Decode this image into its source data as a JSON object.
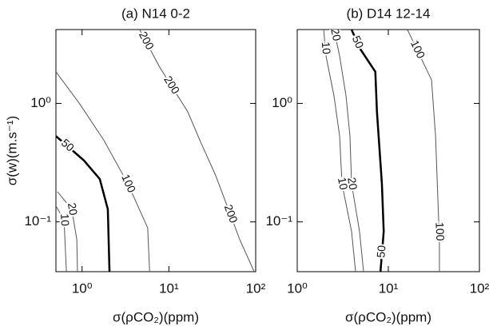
{
  "chart_data": [
    {
      "type": "contour",
      "title": "(a) N14 0-2",
      "xlabel": "σ(ρCO₂)(ppm)",
      "ylabel": "σ(w)(m.s⁻¹)",
      "xscale": "log",
      "yscale": "log",
      "xlim": [
        0.5,
        100
      ],
      "ylim": [
        0.038,
        4.2
      ],
      "xticks": [
        {
          "value": 1,
          "label": "10⁰"
        },
        {
          "value": 10,
          "label": "10¹"
        },
        {
          "value": 100,
          "label": "10²"
        }
      ],
      "yticks": [
        {
          "value": 0.1,
          "label": "10⁻¹"
        },
        {
          "value": 1,
          "label": "10⁰"
        }
      ],
      "series": [
        {
          "name": "200",
          "color": "#555555",
          "linewidth": 1,
          "x": [
            4.6,
            7.9,
            16.5,
            22.7,
            34.7,
            65.5,
            96
          ],
          "y": [
            4.2,
            2.0,
            0.85,
            0.49,
            0.245,
            0.071,
            0.038
          ]
        },
        {
          "name": "100",
          "color": "#555555",
          "linewidth": 1,
          "x": [
            0.5,
            0.94,
            1.78,
            3.37,
            5.7,
            6.0
          ],
          "y": [
            1.85,
            0.99,
            0.49,
            0.21,
            0.089,
            0.038
          ]
        },
        {
          "name": "50",
          "color": "#000000",
          "linewidth": 2.5,
          "x": [
            0.5,
            1.05,
            1.6,
            1.98,
            2.07
          ],
          "y": [
            0.53,
            0.33,
            0.23,
            0.128,
            0.038
          ]
        },
        {
          "name": "20",
          "color": "#555555",
          "linewidth": 1,
          "x": [
            0.52,
            0.76,
            0.87,
            0.885
          ],
          "y": [
            0.18,
            0.128,
            0.071,
            0.038
          ]
        },
        {
          "name": "10",
          "color": "#555555",
          "linewidth": 1,
          "x": [
            0.5,
            0.62,
            0.66
          ],
          "y": [
            0.136,
            0.104,
            0.038
          ]
        }
      ]
    },
    {
      "type": "contour",
      "title": "(b) D14 12-14",
      "xlabel": "σ(ρCO₂)(ppm)",
      "xscale": "log",
      "yscale": "log",
      "xlim": [
        1,
        100
      ],
      "ylim": [
        0.038,
        4.2
      ],
      "xticks": [
        {
          "value": 1,
          "label": "10⁰"
        },
        {
          "value": 10,
          "label": "10¹"
        },
        {
          "value": 100,
          "label": "10²"
        }
      ],
      "yticks": [
        {
          "value": 0.1,
          "label": "10⁻¹"
        },
        {
          "value": 1,
          "label": "10⁰"
        }
      ],
      "series": [
        {
          "name": "10",
          "color": "#555555",
          "linewidth": 1,
          "x": [
            1.95,
            2.07,
            2.53,
            2.92,
            3.1,
            3.95,
            4.37
          ],
          "y": [
            4.2,
            2.51,
            1.16,
            0.53,
            0.21,
            0.083,
            0.038
          ]
        },
        {
          "name": "20",
          "color": "#555555",
          "linewidth": 1,
          "x": [
            2.53,
            2.92,
            3.43,
            3.79,
            3.95,
            4.83,
            5.35
          ],
          "y": [
            4.2,
            2.51,
            1.16,
            0.53,
            0.21,
            0.083,
            0.038
          ]
        },
        {
          "name": "50",
          "color": "#000000",
          "linewidth": 2.5,
          "x": [
            3.95,
            4.83,
            7.2,
            7.5,
            8.5,
            8.9,
            8.2
          ],
          "y": [
            4.2,
            2.94,
            1.85,
            0.85,
            0.21,
            0.083,
            0.038
          ]
        },
        {
          "name": "100",
          "color": "#555555",
          "linewidth": 1,
          "x": [
            16.2,
            29.8,
            33,
            35,
            36.4,
            36.4
          ],
          "y": [
            4.2,
            1.58,
            0.53,
            0.154,
            0.071,
            0.038
          ]
        }
      ]
    }
  ]
}
